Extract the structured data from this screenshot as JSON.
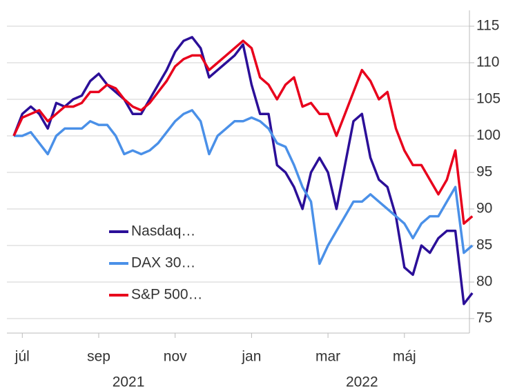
{
  "chart_data": {
    "type": "line",
    "categories": [
      null,
      "júl",
      null,
      null,
      null,
      null,
      null,
      null,
      null,
      null,
      "sep",
      null,
      null,
      null,
      null,
      null,
      null,
      null,
      null,
      "nov",
      null,
      null,
      null,
      null,
      null,
      null,
      null,
      null,
      "jan",
      null,
      null,
      null,
      null,
      null,
      null,
      null,
      null,
      "mar",
      null,
      null,
      null,
      null,
      null,
      null,
      null,
      null,
      "máj",
      null,
      null,
      null,
      null,
      null,
      null,
      null,
      null
    ],
    "year_labels": [
      {
        "label": "2021",
        "start": 0,
        "end": 27
      },
      {
        "label": "2022",
        "start": 28,
        "end": 54
      }
    ],
    "series": [
      {
        "name": "Nasdaq…",
        "color": "#2b0f98",
        "values": [
          100,
          103,
          104,
          103,
          101,
          104.5,
          104,
          105,
          105.5,
          107.5,
          108.5,
          107,
          106,
          105,
          103,
          103,
          105,
          107,
          109,
          111.5,
          113,
          113.5,
          112,
          108,
          109,
          110,
          111,
          112.5,
          107,
          103,
          103,
          96,
          95,
          93,
          90,
          95,
          97,
          95,
          90,
          96,
          102,
          103,
          97,
          94,
          93,
          89,
          82,
          81,
          85,
          84,
          86,
          87,
          87,
          77,
          78.5
        ]
      },
      {
        "name": "DAX 30…",
        "color": "#4a90e8",
        "values": [
          100,
          100,
          100.5,
          99,
          97.5,
          100,
          101,
          101,
          101,
          102,
          101.5,
          101.5,
          100,
          97.5,
          98,
          97.5,
          98,
          99,
          100.5,
          102,
          103,
          103.5,
          102,
          97.5,
          100,
          101,
          102,
          102,
          102.5,
          102,
          101,
          99,
          98.5,
          96,
          93,
          91,
          82.5,
          85,
          87,
          89,
          91,
          91,
          92,
          91,
          90,
          89,
          88,
          86,
          88,
          89,
          89,
          91,
          93,
          84,
          85
        ]
      },
      {
        "name": "S&P 500…",
        "color": "#e8001c",
        "values": [
          100,
          102.5,
          103,
          103.5,
          102,
          103,
          104,
          104,
          104.5,
          106,
          106,
          107,
          106.5,
          105,
          104,
          103.5,
          104.5,
          106,
          107.5,
          109.5,
          110.5,
          111,
          111,
          109,
          110,
          111,
          112,
          113,
          112,
          108,
          107,
          105,
          107,
          108,
          104,
          104.5,
          103,
          103,
          100,
          103,
          106,
          109,
          107.5,
          105,
          106,
          101,
          98,
          96,
          96,
          94,
          92,
          94,
          98,
          88,
          89
        ]
      }
    ],
    "ylim": [
      75,
      115
    ],
    "yticks": [
      75,
      80,
      85,
      90,
      95,
      100,
      105,
      110,
      115
    ],
    "grid": true
  }
}
